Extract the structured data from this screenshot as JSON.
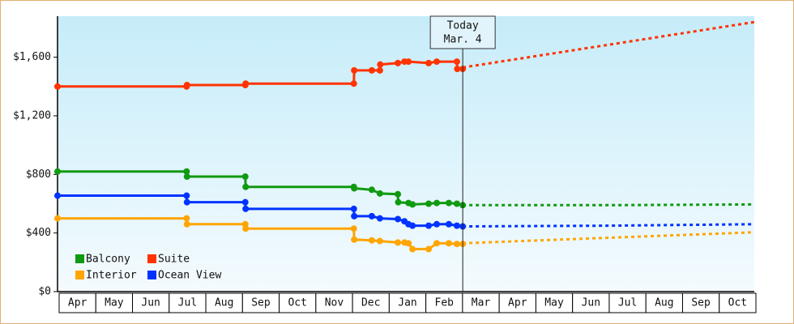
{
  "chart_data": {
    "type": "line",
    "xlim": [
      0,
      19
    ],
    "xticks": [
      {
        "value": 0.5,
        "label": "Apr"
      },
      {
        "value": 1.5,
        "label": "May"
      },
      {
        "value": 2.5,
        "label": "Jun"
      },
      {
        "value": 3.5,
        "label": "Jul"
      },
      {
        "value": 4.5,
        "label": "Aug"
      },
      {
        "value": 5.5,
        "label": "Sep"
      },
      {
        "value": 6.5,
        "label": "Oct"
      },
      {
        "value": 7.5,
        "label": "Nov"
      },
      {
        "value": 8.5,
        "label": "Dec"
      },
      {
        "value": 9.5,
        "label": "Jan"
      },
      {
        "value": 10.5,
        "label": "Feb"
      },
      {
        "value": 11.5,
        "label": "Mar"
      },
      {
        "value": 12.5,
        "label": "Apr"
      },
      {
        "value": 13.5,
        "label": "May"
      },
      {
        "value": 14.5,
        "label": "Jun"
      },
      {
        "value": 15.5,
        "label": "Jul"
      },
      {
        "value": 16.5,
        "label": "Aug"
      },
      {
        "value": 17.5,
        "label": "Sep"
      },
      {
        "value": 18.5,
        "label": "Oct"
      }
    ],
    "ylim": [
      0,
      1880
    ],
    "yticks": [
      {
        "value": 0,
        "label": "$0"
      },
      {
        "value": 400,
        "label": "$400"
      },
      {
        "value": 800,
        "label": "$800"
      },
      {
        "value": 1200,
        "label": "$1,200"
      },
      {
        "value": 1600,
        "label": "$1,600"
      }
    ],
    "today": {
      "x": 11.05,
      "title": "Today",
      "date": "Mar. 4"
    },
    "series": [
      {
        "name": "Balcony",
        "color": "#109a10",
        "x": [
          0,
          3.52,
          3.53,
          5.12,
          5.13,
          8.08,
          8.09,
          8.57,
          8.79,
          9.28,
          9.29,
          9.57,
          9.68,
          10.12,
          10.34,
          10.67,
          10.89,
          11.05
        ],
        "values": [
          820,
          820,
          785,
          785,
          715,
          715,
          705,
          695,
          670,
          665,
          610,
          605,
          595,
          600,
          605,
          605,
          600,
          590
        ],
        "forecast": {
          "x": [
            11.05,
            15,
            19
          ],
          "values": [
            590,
            590,
            595
          ]
        }
      },
      {
        "name": "Suite",
        "color": "#ff3300",
        "x": [
          0,
          3.52,
          3.53,
          5.12,
          5.13,
          8.08,
          8.09,
          8.57,
          8.79,
          8.8,
          9.28,
          9.46,
          9.57,
          10.12,
          10.34,
          10.89,
          10.9,
          11.05
        ],
        "values": [
          1400,
          1400,
          1410,
          1410,
          1420,
          1420,
          1510,
          1510,
          1510,
          1550,
          1560,
          1570,
          1570,
          1560,
          1570,
          1570,
          1520,
          1520
        ],
        "forecast": {
          "x": [
            11.05,
            19
          ],
          "values": [
            1530,
            1840
          ]
        }
      },
      {
        "name": "Interior",
        "color": "#ffa500",
        "x": [
          0,
          3.52,
          3.53,
          5.12,
          5.13,
          8.08,
          8.09,
          8.57,
          8.79,
          9.28,
          9.46,
          9.57,
          9.68,
          10.12,
          10.34,
          10.67,
          10.89,
          11.05
        ],
        "values": [
          500,
          500,
          460,
          460,
          430,
          430,
          355,
          350,
          345,
          335,
          335,
          330,
          290,
          290,
          330,
          330,
          325,
          325
        ],
        "forecast": {
          "x": [
            11.05,
            19
          ],
          "values": [
            330,
            405
          ]
        }
      },
      {
        "name": "Ocean View",
        "color": "#0033ff",
        "x": [
          0,
          3.52,
          3.53,
          5.12,
          5.13,
          8.08,
          8.09,
          8.57,
          8.79,
          9.28,
          9.46,
          9.57,
          9.68,
          10.12,
          10.34,
          10.67,
          10.89,
          11.05
        ],
        "values": [
          655,
          655,
          610,
          610,
          565,
          565,
          515,
          515,
          500,
          495,
          480,
          460,
          450,
          450,
          460,
          460,
          450,
          445
        ],
        "forecast": {
          "x": [
            11.05,
            15,
            19
          ],
          "values": [
            445,
            450,
            460
          ]
        }
      }
    ]
  }
}
